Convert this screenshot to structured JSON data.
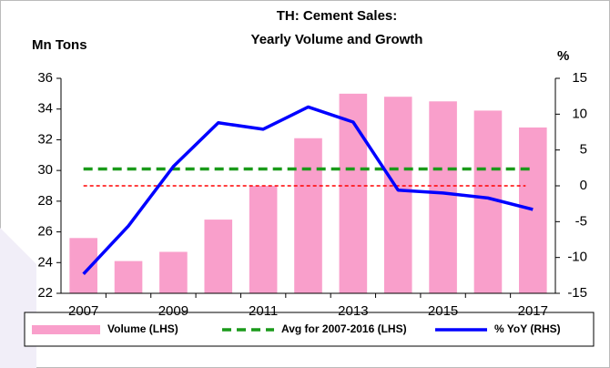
{
  "chart_data": {
    "type": "bar_line",
    "title_lines": [
      "TH: Cement Sales:",
      "Yearly Volume and Growth"
    ],
    "y_label": "Mn Tons",
    "y2_label": "%",
    "categories": [
      "2007",
      null,
      "2009",
      null,
      "2011",
      null,
      "2013",
      null,
      "2015",
      null,
      "2017"
    ],
    "ylim": [
      22,
      36
    ],
    "yticks": [
      22,
      24,
      26,
      28,
      30,
      32,
      34,
      36
    ],
    "y2lim": [
      -15,
      15
    ],
    "y2ticks": [
      -15,
      -10,
      -5,
      0,
      5,
      10,
      15
    ],
    "series": [
      {
        "name": "Volume (LHS)",
        "kind": "bar",
        "color": "#f99fcb",
        "values": [
          25.6,
          24.1,
          24.7,
          26.8,
          29.0,
          32.1,
          35.0,
          34.8,
          34.5,
          33.9,
          32.8
        ]
      },
      {
        "name": "Avg for 2007-2016 (LHS)",
        "kind": "hline",
        "color": "#1a9a1a",
        "value": 30.1
      },
      {
        "name": "% YoY (RHS)",
        "kind": "line",
        "axis": "y2",
        "color": "#0000ff",
        "values": [
          -12.3,
          -5.6,
          2.7,
          8.8,
          7.9,
          11.0,
          8.9,
          -0.6,
          -1.0,
          -1.7,
          -3.3
        ]
      }
    ],
    "reference_lines": [
      {
        "axis": "y2",
        "value": 0,
        "color": "#ff0000"
      }
    ]
  }
}
